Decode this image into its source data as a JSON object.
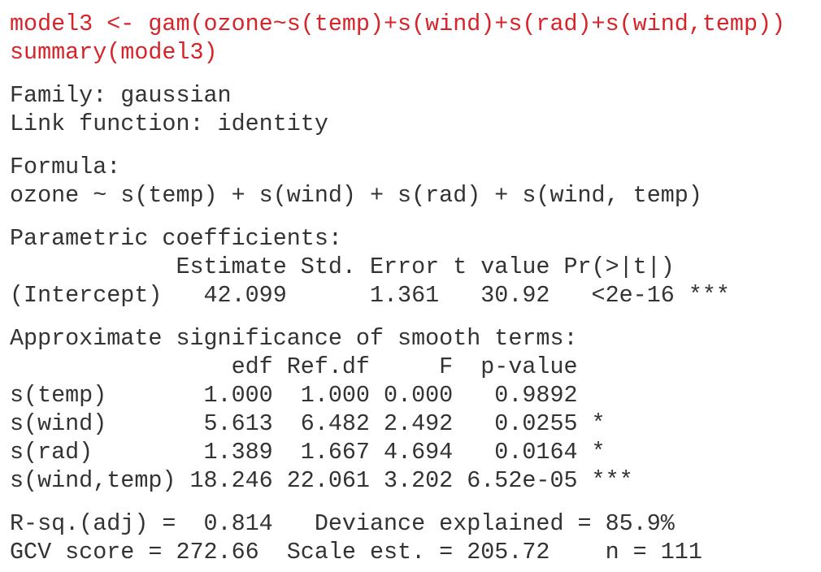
{
  "blocks": [
    {
      "kind": "input",
      "lines": [
        "model3 <- gam(ozone~s(temp)+s(wind)+s(rad)+s(wind,temp))",
        "summary(model3)"
      ]
    },
    {
      "kind": "output",
      "lines": [
        "Family: gaussian",
        "Link function: identity"
      ]
    },
    {
      "kind": "output",
      "lines": [
        "Formula:",
        "ozone ~ s(temp) + s(wind) + s(rad) + s(wind, temp)"
      ]
    },
    {
      "kind": "output",
      "lines": [
        "Parametric coefficients:",
        "            Estimate Std. Error t value Pr(>|t|)",
        "(Intercept)   42.099      1.361   30.92   <2e-16 ***"
      ]
    },
    {
      "kind": "output",
      "lines": [
        "Approximate significance of smooth terms:",
        "                edf Ref.df     F  p-value",
        "s(temp)       1.000  1.000 0.000   0.9892",
        "s(wind)       5.613  6.482 2.492   0.0255 *",
        "s(rad)        1.389  1.667 4.694   0.0164 *",
        "s(wind,temp) 18.246 22.061 3.202 6.52e-05 ***"
      ]
    },
    {
      "kind": "output",
      "lines": [
        "R-sq.(adj) =  0.814   Deviance explained = 85.9%",
        "GCV score = 272.66  Scale est. = 205.72    n = 111"
      ]
    }
  ]
}
